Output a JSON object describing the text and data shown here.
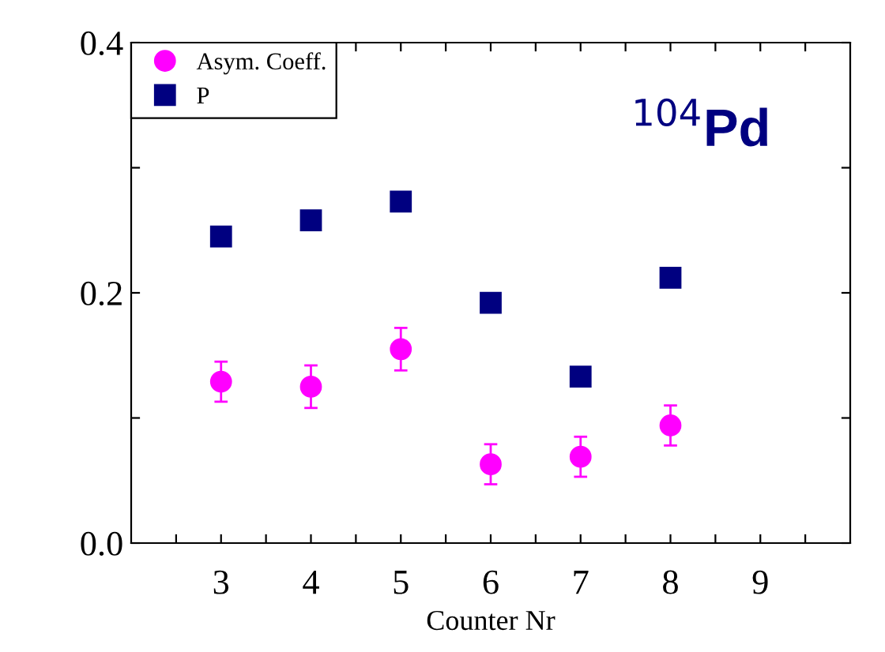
{
  "chart_data": {
    "type": "scatter",
    "xlabel": "Counter Nr",
    "annotations": [
      "$^{104}$Pd"
    ],
    "x": [
      3,
      4,
      5,
      6,
      7,
      8
    ],
    "series": [
      {
        "name": "Asym. Coeff.",
        "color": "#ff00ff",
        "marker": "circle",
        "values": [
          0.129,
          0.125,
          0.155,
          0.063,
          0.069,
          0.094
        ],
        "errors": [
          0.016,
          0.017,
          0.017,
          0.016,
          0.016,
          0.016
        ]
      },
      {
        "name": "P",
        "color": "#000080",
        "marker": "square",
        "values": [
          0.245,
          0.258,
          0.273,
          0.192,
          0.133,
          0.212
        ]
      }
    ],
    "xlim": [
      2,
      10
    ],
    "ylim": [
      0,
      0.4
    ],
    "xticks": [
      {
        "value": 2.5,
        "label": null
      },
      3,
      {
        "value": 3.5,
        "label": null
      },
      4,
      {
        "value": 4.5,
        "label": null
      },
      5,
      {
        "value": 5.5,
        "label": null
      },
      6,
      {
        "value": 6.5,
        "label": null
      },
      7,
      {
        "value": 7.5,
        "label": null
      },
      8,
      {
        "value": 8.5,
        "label": null
      },
      9,
      {
        "value": 9.5,
        "label": null
      }
    ],
    "yticks": [
      {
        "value": 0,
        "label": "0.0"
      },
      {
        "value": 0.1,
        "label": null
      },
      {
        "value": 0.2,
        "label": "0.2"
      },
      {
        "value": 0.3,
        "label": null
      },
      {
        "value": 0.4,
        "label": "0.4"
      }
    ],
    "grid": false,
    "legend": "top left"
  }
}
